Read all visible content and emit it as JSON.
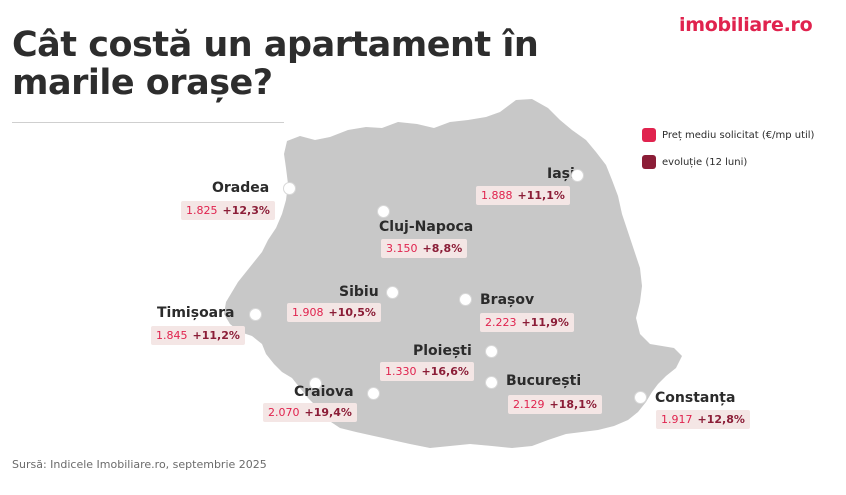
{
  "title": "Cât costă un apartament în marile orașe?",
  "logo": "imobiliare.ro",
  "legend": [
    {
      "label": "Preț mediu solicitat (€/mp util)",
      "color": "#e0234e"
    },
    {
      "label": "evoluție (12 luni)",
      "color": "#8b1d37"
    }
  ],
  "cities": [
    {
      "name": "Oradea",
      "price": "1.825",
      "change": "+12,3%"
    },
    {
      "name": "Iași",
      "price": "1.888",
      "change": "+11,1%"
    },
    {
      "name": "Cluj-Napoca",
      "price": "3.150",
      "change": "+8,8%"
    },
    {
      "name": "Sibiu",
      "price": "1.908",
      "change": "+10,5%"
    },
    {
      "name": "Brașov",
      "price": "2.223",
      "change": "+11,9%"
    },
    {
      "name": "Timișoara",
      "price": "1.845",
      "change": "+11,2%"
    },
    {
      "name": "Ploiești",
      "price": "1.330",
      "change": "+16,6%"
    },
    {
      "name": "Craiova",
      "price": "2.070",
      "change": "+19,4%"
    },
    {
      "name": "București",
      "price": "2.129",
      "change": "+18,1%"
    },
    {
      "name": "Constanța",
      "price": "1.917",
      "change": "+12,8%"
    }
  ],
  "source": "Sursă: Indicele Imobiliare.ro, septembrie 2025",
  "colors": {
    "map_fill": "#c8c8c8",
    "badge_bg": "#f4e6e5",
    "price": "#e0234e",
    "change": "#8b1d37"
  }
}
